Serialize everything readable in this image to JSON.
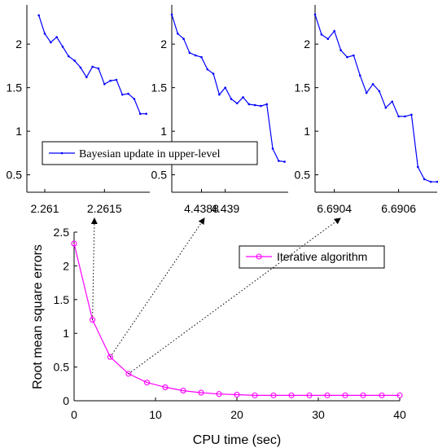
{
  "chart_data": [
    {
      "id": "inset1",
      "type": "line",
      "x": [
        2.26095,
        2.261,
        2.26105,
        2.2611,
        2.26115,
        2.2612,
        2.26125,
        2.2613,
        2.26135,
        2.2614,
        2.26145,
        2.2615,
        2.26155,
        2.2616,
        2.26165,
        2.2617,
        2.26175,
        2.2618,
        2.26185
      ],
      "series": [
        {
          "name": "Bayesian update in upper-level",
          "color": "#0000ff",
          "values": [
            2.33,
            2.12,
            2.02,
            2.08,
            1.97,
            1.86,
            1.81,
            1.73,
            1.62,
            1.74,
            1.72,
            1.54,
            1.58,
            1.59,
            1.42,
            1.43,
            1.37,
            1.2,
            1.2
          ]
        }
      ],
      "xlim": [
        2.26085,
        2.26188
      ],
      "ylim": [
        0.3,
        2.45
      ],
      "xticks": [
        2.261,
        2.2615
      ],
      "xtick_labels": [
        "2.261",
        "2.2615"
      ],
      "yticks": [
        0.5,
        1,
        1.5,
        2
      ],
      "ytick_labels": [
        "0.5",
        "1",
        "1.5",
        "2"
      ]
    },
    {
      "id": "inset2",
      "type": "line",
      "x": [
        4.43855,
        4.4386,
        4.43865,
        4.4387,
        4.43875,
        4.4388,
        4.43885,
        4.4389,
        4.43895,
        4.439,
        4.43905,
        4.4391,
        4.43915,
        4.4392,
        4.43925,
        4.4393,
        4.43935,
        4.4394,
        4.43945,
        4.4395
      ],
      "series": [
        {
          "name": "",
          "color": "#0000ff",
          "values": [
            2.34,
            2.12,
            2.06,
            1.9,
            1.87,
            1.85,
            1.71,
            1.66,
            1.42,
            1.5,
            1.37,
            1.32,
            1.39,
            1.31,
            1.3,
            1.29,
            1.31,
            0.8,
            0.66,
            0.65
          ]
        }
      ],
      "xlim": [
        4.43855,
        4.43953
      ],
      "ylim": [
        0.3,
        2.45
      ],
      "xticks": [
        4.4388,
        4.439
      ],
      "xtick_labels": [
        "4.4388",
        "4.439"
      ],
      "yticks": [
        0.5,
        1,
        1.5,
        2
      ],
      "ytick_labels": [
        "0.5",
        "1",
        "1.5",
        "2"
      ]
    },
    {
      "id": "inset3",
      "type": "line",
      "x": [
        6.69034,
        6.69036,
        6.69038,
        6.6904,
        6.69042,
        6.69044,
        6.69046,
        6.69048,
        6.6905,
        6.69052,
        6.69054,
        6.69056,
        6.69058,
        6.6906,
        6.69062,
        6.69064,
        6.69066,
        6.69068,
        6.6907,
        6.69072
      ],
      "series": [
        {
          "name": "",
          "color": "#0000ff",
          "values": [
            2.34,
            2.11,
            2.06,
            2.15,
            1.93,
            1.85,
            1.87,
            1.64,
            1.44,
            1.54,
            1.46,
            1.27,
            1.34,
            1.17,
            1.17,
            1.19,
            0.59,
            0.45,
            0.42,
            0.42
          ]
        }
      ],
      "xlim": [
        6.69034,
        6.69072
      ],
      "ylim": [
        0.3,
        2.45
      ],
      "xticks": [
        6.6904,
        6.6906
      ],
      "xtick_labels": [
        "6.6904",
        "6.6906"
      ],
      "yticks": [
        0.5,
        1,
        1.5,
        2
      ],
      "ytick_labels": [
        "0.5",
        "1",
        "1.5",
        "2"
      ]
    },
    {
      "id": "main",
      "type": "line",
      "xlabel": "CPU time (sec)",
      "ylabel": "Root mean square errors",
      "x": [
        0,
        2.26,
        4.44,
        6.69,
        8.95,
        11.2,
        13.4,
        15.6,
        17.8,
        20.0,
        22.2,
        24.5,
        26.7,
        28.9,
        31.1,
        33.3,
        35.5,
        37.8,
        40.0
      ],
      "series": [
        {
          "name": "Iterative algorithm",
          "color": "#ff00ff",
          "values": [
            2.33,
            1.2,
            0.65,
            0.4,
            0.27,
            0.2,
            0.15,
            0.12,
            0.1,
            0.09,
            0.08,
            0.08,
            0.08,
            0.08,
            0.08,
            0.08,
            0.08,
            0.08,
            0.08
          ]
        }
      ],
      "xlim": [
        0,
        40
      ],
      "ylim": [
        0,
        2.5
      ],
      "xticks": [
        0,
        10,
        20,
        30,
        40
      ],
      "xtick_labels": [
        "0",
        "10",
        "20",
        "30",
        "40"
      ],
      "yticks": [
        0,
        0.5,
        1,
        1.5,
        2,
        2.5
      ],
      "ytick_labels": [
        "0",
        "0.5",
        "1",
        "1.5",
        "2",
        "2.5"
      ]
    }
  ],
  "annotations": [
    {
      "from": [
        2.26,
        1.2
      ],
      "to_inset": "inset1"
    },
    {
      "from": [
        4.44,
        0.65
      ],
      "to_inset": "inset2"
    },
    {
      "from": [
        6.69,
        0.4
      ],
      "to_inset": "inset3"
    }
  ]
}
